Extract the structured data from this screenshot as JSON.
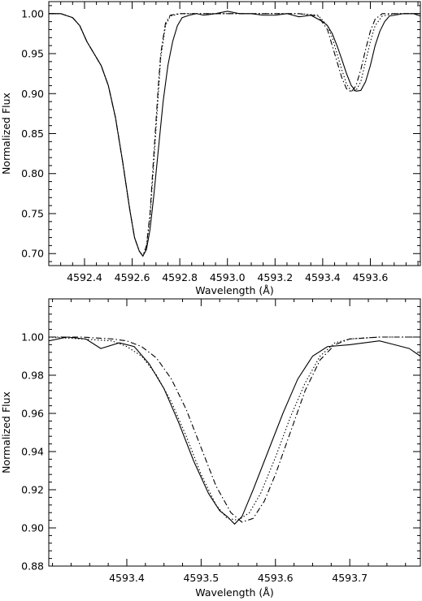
{
  "chart_data": [
    {
      "type": "line",
      "xlabel": "Wavelength (Å)",
      "ylabel": "Normalized Flux",
      "xlim": [
        4592.25,
        4593.81
      ],
      "ylim": [
        0.685,
        1.015
      ],
      "grid": false,
      "x_ticks": [
        4592.4,
        4592.6,
        4592.8,
        4593.0,
        4593.2,
        4593.4,
        4593.6
      ],
      "x_tick_labels": [
        "4592.4",
        "4592.6",
        "4592.8",
        "4593.0",
        "4593.2",
        "4593.4",
        "4593.6"
      ],
      "y_ticks": [
        0.7,
        0.75,
        0.8,
        0.85,
        0.9,
        0.95,
        1.0
      ],
      "y_tick_labels": [
        "0.70",
        "0.75",
        "0.80",
        "0.85",
        "0.90",
        "0.95",
        "1.00"
      ],
      "series": [
        {
          "style": "solid",
          "x": [
            4592.25,
            4592.3,
            4592.35,
            4592.38,
            4592.41,
            4592.44,
            4592.47,
            4592.5,
            4592.53,
            4592.56,
            4592.59,
            4592.61,
            4592.63,
            4592.645,
            4592.66,
            4592.675,
            4592.69,
            4592.71,
            4592.73,
            4592.75,
            4592.77,
            4592.79,
            4592.81,
            4592.84,
            4592.87,
            4592.9,
            4592.95,
            4593.0,
            4593.05,
            4593.1,
            4593.15,
            4593.2,
            4593.25,
            4593.3,
            4593.35,
            4593.4,
            4593.42,
            4593.44,
            4593.46,
            4593.48,
            4593.5,
            4593.52,
            4593.54,
            4593.56,
            4593.58,
            4593.6,
            4593.62,
            4593.64,
            4593.66,
            4593.68,
            4593.7,
            4593.74,
            4593.78,
            4593.81
          ],
          "y": [
            1.0,
            1.0,
            0.995,
            0.985,
            0.965,
            0.95,
            0.935,
            0.91,
            0.87,
            0.815,
            0.755,
            0.72,
            0.703,
            0.697,
            0.705,
            0.73,
            0.77,
            0.83,
            0.89,
            0.935,
            0.965,
            0.985,
            0.995,
            0.998,
            1.0,
            0.998,
            1.0,
            1.003,
            1.0,
            1.0,
            0.998,
            0.998,
            1.0,
            0.996,
            0.998,
            0.99,
            0.985,
            0.975,
            0.96,
            0.943,
            0.925,
            0.91,
            0.903,
            0.904,
            0.915,
            0.935,
            0.96,
            0.978,
            0.99,
            0.997,
            0.998,
            1.0,
            1.0,
            0.997
          ]
        },
        {
          "style": "dotted",
          "x": [
            4592.25,
            4592.3,
            4592.35,
            4592.38,
            4592.41,
            4592.44,
            4592.47,
            4592.5,
            4592.53,
            4592.56,
            4592.59,
            4592.61,
            4592.63,
            4592.645,
            4592.66,
            4592.675,
            4592.69,
            4592.71,
            4592.72,
            4592.74,
            4592.76,
            4592.8,
            4592.9,
            4593.0,
            4593.1,
            4593.2,
            4593.3,
            4593.38,
            4593.42,
            4593.44,
            4593.46,
            4593.48,
            4593.5,
            4593.52,
            4593.54,
            4593.56,
            4593.58,
            4593.6,
            4593.62,
            4593.65,
            4593.7,
            4593.81
          ],
          "y": [
            1.0,
            1.0,
            0.995,
            0.985,
            0.965,
            0.95,
            0.935,
            0.91,
            0.87,
            0.815,
            0.755,
            0.72,
            0.703,
            0.697,
            0.708,
            0.745,
            0.81,
            0.9,
            0.945,
            0.985,
            0.997,
            1.0,
            1.0,
            1.0,
            1.0,
            1.0,
            1.0,
            0.998,
            0.985,
            0.97,
            0.95,
            0.93,
            0.912,
            0.903,
            0.904,
            0.915,
            0.94,
            0.965,
            0.985,
            0.997,
            1.0,
            1.0
          ]
        },
        {
          "style": "dash-dot",
          "x": [
            4592.25,
            4592.3,
            4592.35,
            4592.38,
            4592.41,
            4592.44,
            4592.47,
            4592.5,
            4592.53,
            4592.56,
            4592.59,
            4592.61,
            4592.63,
            4592.645,
            4592.66,
            4592.675,
            4592.69,
            4592.71,
            4592.72,
            4592.74,
            4592.76,
            4592.8,
            4592.9,
            4593.0,
            4593.1,
            4593.2,
            4593.3,
            4593.38,
            4593.42,
            4593.44,
            4593.46,
            4593.48,
            4593.5,
            4593.52,
            4593.54,
            4593.56,
            4593.58,
            4593.6,
            4593.62,
            4593.65,
            4593.7,
            4593.81
          ],
          "y": [
            1.0,
            1.0,
            0.995,
            0.985,
            0.965,
            0.95,
            0.935,
            0.91,
            0.87,
            0.815,
            0.755,
            0.72,
            0.703,
            0.697,
            0.71,
            0.75,
            0.82,
            0.91,
            0.95,
            0.988,
            0.998,
            1.0,
            1.0,
            1.0,
            1.0,
            1.0,
            1.0,
            0.997,
            0.98,
            0.96,
            0.94,
            0.92,
            0.906,
            0.902,
            0.91,
            0.93,
            0.955,
            0.978,
            0.993,
            1.0,
            1.0,
            1.0
          ]
        }
      ]
    },
    {
      "type": "line",
      "xlabel": "Wavelength (Å)",
      "ylabel": "Normalized Flux",
      "xlim": [
        4593.295,
        4593.795
      ],
      "ylim": [
        0.88,
        1.02
      ],
      "grid": false,
      "x_ticks": [
        4593.4,
        4593.5,
        4593.6,
        4593.7
      ],
      "x_tick_labels": [
        "4593.4",
        "4593.5",
        "4593.6",
        "4593.7"
      ],
      "y_ticks": [
        0.88,
        0.9,
        0.92,
        0.94,
        0.96,
        0.98,
        1.0
      ],
      "y_tick_labels": [
        "0.88",
        "0.90",
        "0.92",
        "0.94",
        "0.96",
        "0.98",
        "1.00"
      ],
      "series": [
        {
          "style": "solid",
          "x": [
            4593.295,
            4593.32,
            4593.345,
            4593.365,
            4593.39,
            4593.41,
            4593.43,
            4593.45,
            4593.47,
            4593.49,
            4593.51,
            4593.525,
            4593.535,
            4593.545,
            4593.555,
            4593.57,
            4593.59,
            4593.61,
            4593.63,
            4593.65,
            4593.67,
            4593.7,
            4593.72,
            4593.74,
            4593.76,
            4593.78,
            4593.795
          ],
          "y": [
            0.998,
            1.0,
            0.999,
            0.994,
            0.997,
            0.995,
            0.986,
            0.973,
            0.955,
            0.935,
            0.918,
            0.909,
            0.906,
            0.902,
            0.906,
            0.92,
            0.94,
            0.96,
            0.978,
            0.99,
            0.995,
            0.996,
            0.997,
            0.998,
            0.996,
            0.994,
            0.99
          ]
        },
        {
          "style": "dotted",
          "x": [
            4593.295,
            4593.34,
            4593.38,
            4593.4,
            4593.42,
            4593.44,
            4593.46,
            4593.48,
            4593.5,
            4593.52,
            4593.535,
            4593.55,
            4593.565,
            4593.58,
            4593.6,
            4593.62,
            4593.64,
            4593.66,
            4593.68,
            4593.7,
            4593.74,
            4593.795
          ],
          "y": [
            1.0,
            0.999,
            0.998,
            0.995,
            0.99,
            0.98,
            0.966,
            0.948,
            0.928,
            0.912,
            0.905,
            0.904,
            0.908,
            0.918,
            0.937,
            0.958,
            0.976,
            0.99,
            0.997,
            0.999,
            1.0,
            1.0
          ]
        },
        {
          "style": "dash-dot",
          "x": [
            4593.295,
            4593.34,
            4593.38,
            4593.4,
            4593.42,
            4593.44,
            4593.46,
            4593.48,
            4593.5,
            4593.52,
            4593.54,
            4593.555,
            4593.57,
            4593.585,
            4593.6,
            4593.62,
            4593.64,
            4593.66,
            4593.68,
            4593.7,
            4593.74,
            4593.795
          ],
          "y": [
            1.0,
            1.0,
            0.999,
            0.998,
            0.995,
            0.989,
            0.978,
            0.962,
            0.942,
            0.922,
            0.908,
            0.903,
            0.905,
            0.914,
            0.928,
            0.95,
            0.972,
            0.988,
            0.996,
            0.999,
            1.0,
            1.0
          ]
        }
      ]
    }
  ]
}
